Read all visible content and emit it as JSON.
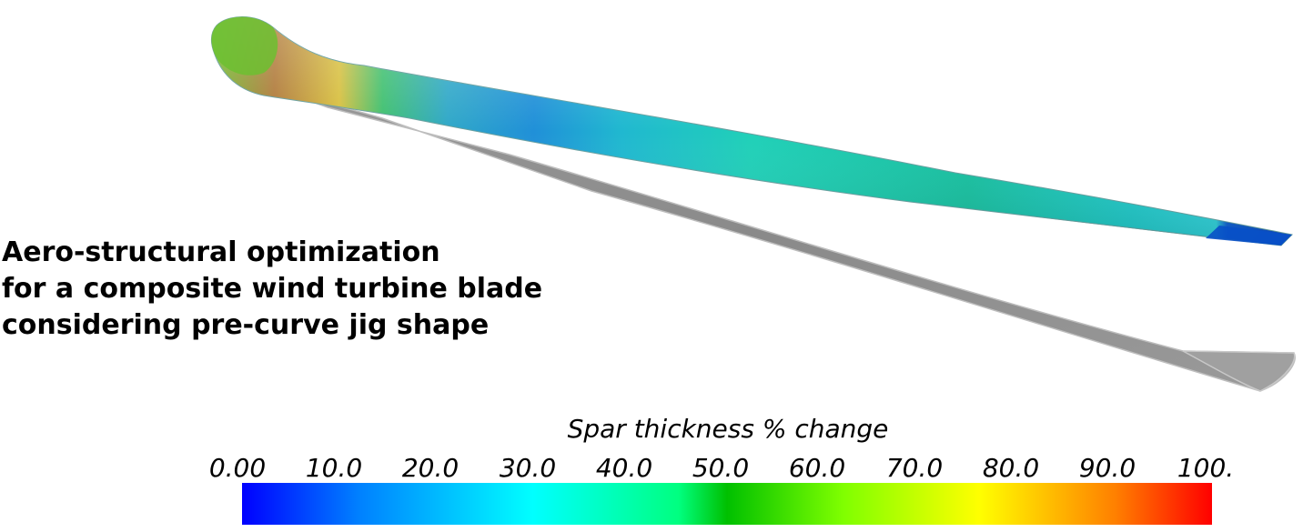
{
  "title_lines": [
    "Aero-structural optimization",
    "for a composite wind turbine blade",
    "considering pre-curve jig shape"
  ],
  "colorbar": {
    "title": "Spar thickness % change",
    "ticks": [
      "0.00",
      "10.0",
      "20.0",
      "30.0",
      "40.0",
      "50.0",
      "60.0",
      "70.0",
      "80.0",
      "90.0",
      "100."
    ],
    "range": [
      0,
      100
    ],
    "colormap": [
      "#0000ff",
      "#0080ff",
      "#00ffff",
      "#00ff80",
      "#00c000",
      "#80ff00",
      "#ffff00",
      "#ff8000",
      "#ff0000"
    ]
  },
  "colors": {
    "jig_blade": "#8e8e8e",
    "jig_blade_edge": "#c8c8c8"
  }
}
